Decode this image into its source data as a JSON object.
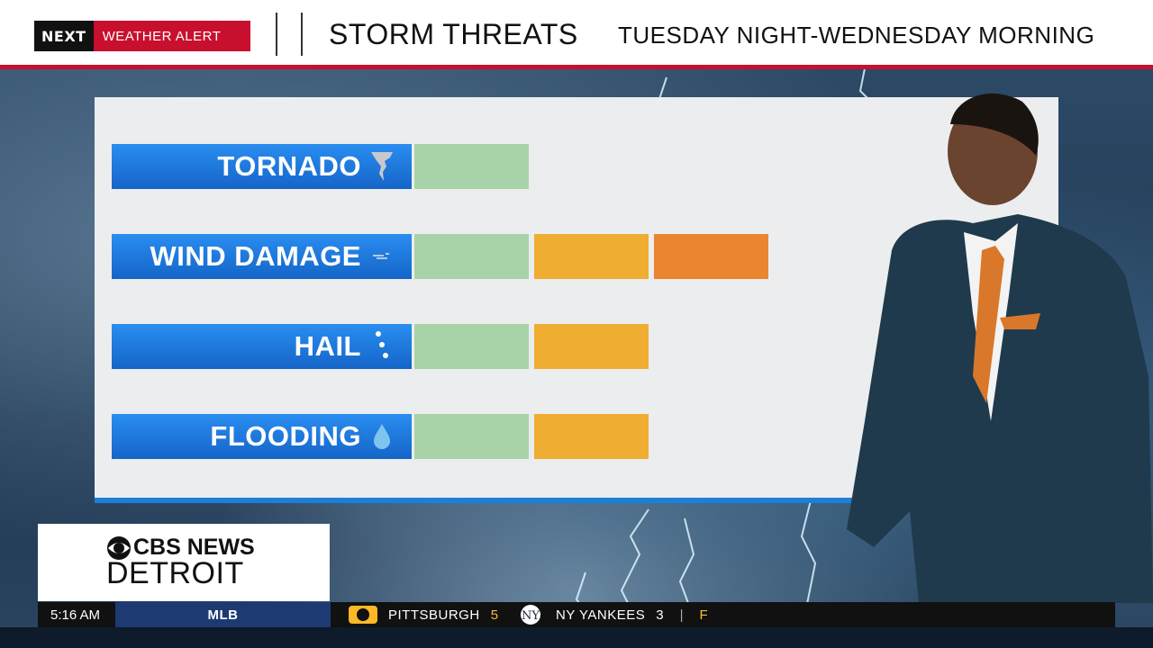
{
  "header": {
    "badge_brand": "NEXT",
    "badge_label": "WEATHER ALERT",
    "title": "STORM THREATS",
    "subtitle": "TUESDAY NIGHT-WEDNESDAY MORNING"
  },
  "threats": [
    {
      "label": "TORNADO",
      "icon": "tornado-icon",
      "level": 1
    },
    {
      "label": "WIND DAMAGE",
      "icon": "wind-icon",
      "level": 3
    },
    {
      "label": "HAIL",
      "icon": "hail-icon",
      "level": 2
    },
    {
      "label": "FLOODING",
      "icon": "water-drop-icon",
      "level": 2
    }
  ],
  "level_colors": [
    "#a8d3a8",
    "#efad31",
    "#ec8530"
  ],
  "logo": {
    "network": "CBS NEWS",
    "city": "DETROIT"
  },
  "ticker": {
    "time": "5:16 AM",
    "league": "MLB",
    "team1": "PITTSBURGH",
    "score1": "5",
    "team2": "NY YANKEES",
    "score2": "3",
    "status": "F"
  }
}
